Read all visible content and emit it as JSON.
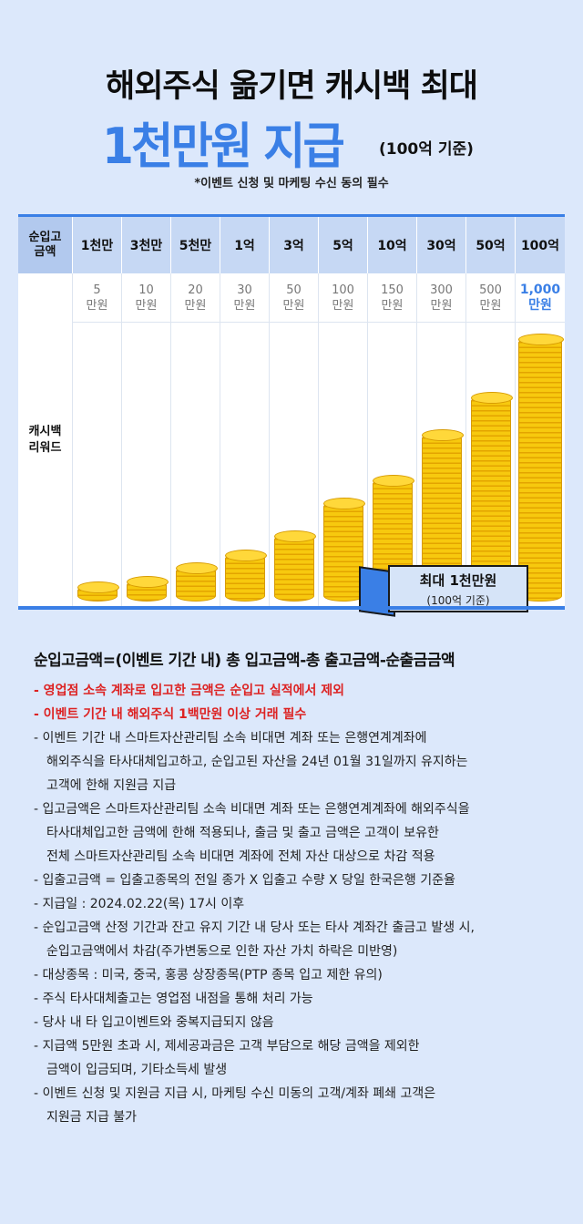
{
  "header": {
    "title_line1": "해외주식 옮기면 캐시백 최대",
    "title_line2": "1천만원 지급",
    "title_line2_sub": "(100억 기준)",
    "notice": "*이벤트 신청 및 마케팅 수신 동의 필수"
  },
  "table": {
    "header_label": "순입고\n금액",
    "row_label": "캐시백\n리워드",
    "tiers": [
      "1천만",
      "3천만",
      "5천만",
      "1억",
      "3억",
      "5억",
      "10억",
      "30억",
      "50억",
      "100억"
    ],
    "rewards": [
      "5\n만원",
      "10\n만원",
      "20\n만원",
      "30\n만원",
      "50\n만원",
      "100\n만원",
      "150\n만원",
      "300\n만원",
      "500\n만원",
      "1,000\n만원"
    ],
    "reward_values_manwon": [
      5,
      10,
      20,
      30,
      50,
      100,
      150,
      300,
      500,
      1000
    ],
    "accent_color": "#3a7fe6",
    "coin_color": "#f7c90e"
  },
  "banner": {
    "line1": "최대 1천만원",
    "line2": "(100억 기준)"
  },
  "notes": {
    "title": "순입고금액=(이벤트 기간 내) 총 입고금액-총 출고금액-순출금금액",
    "items": [
      {
        "text": "- 영업점 소속 계좌로 입고한 금액은 순입고 실적에서 제외",
        "red": true
      },
      {
        "text": "- 이벤트 기간 내 해외주식 1백만원 이상 거래 필수",
        "red": true
      },
      {
        "text": "- 이벤트 기간 내 스마트자산관리팀 소속 비대면 계좌 또는 은행연계계좌에\n해외주식을 타사대체입고하고, 순입고된 자산을 24년 01월 31일까지 유지하는\n고객에 한해 지원금 지급",
        "red": false
      },
      {
        "text": "- 입고금액은 스마트자산관리팀 소속 비대면 계좌 또는 은행연계계좌에 해외주식을\n타사대체입고한 금액에 한해 적용되나, 출금 및 출고 금액은 고객이 보유한\n전체 스마트자산관리팀 소속 비대면 계좌에 전체 자산 대상으로 차감 적용",
        "red": false
      },
      {
        "text": "- 입출고금액 = 입출고종목의 전일 종가 X 입출고 수량 X 당일 한국은행 기준율",
        "red": false
      },
      {
        "text": "- 지급일 : 2024.02.22(목) 17시 이후",
        "red": false
      },
      {
        "text": "- 순입고금액 산정 기간과 잔고 유지 기간 내 당사 또는 타사 계좌간 출금고 발생 시,\n순입고금액에서 차감(주가변동으로 인한 자산 가치 하락은 미반영)",
        "red": false
      },
      {
        "text": "- 대상종목 : 미국, 중국, 홍콩 상장종목(PTP 종목 입고 제한 유의)",
        "red": false
      },
      {
        "text": "- 주식 타사대체출고는 영업점 내점을 통해 처리 가능",
        "red": false
      },
      {
        "text": "- 당사 내 타 입고이벤트와 중복지급되지 않음",
        "red": false
      },
      {
        "text": "- 지급액 5만원 초과 시, 제세공과금은 고객 부담으로 해당 금액을 제외한\n금액이 입금되며, 기타소득세 발생",
        "red": false
      },
      {
        "text": "- 이벤트 신청 및 지원금 지급 시, 마케팅 수신 미동의 고객/계좌 폐쇄 고객은\n지원금 지급 불가",
        "red": false
      }
    ]
  }
}
